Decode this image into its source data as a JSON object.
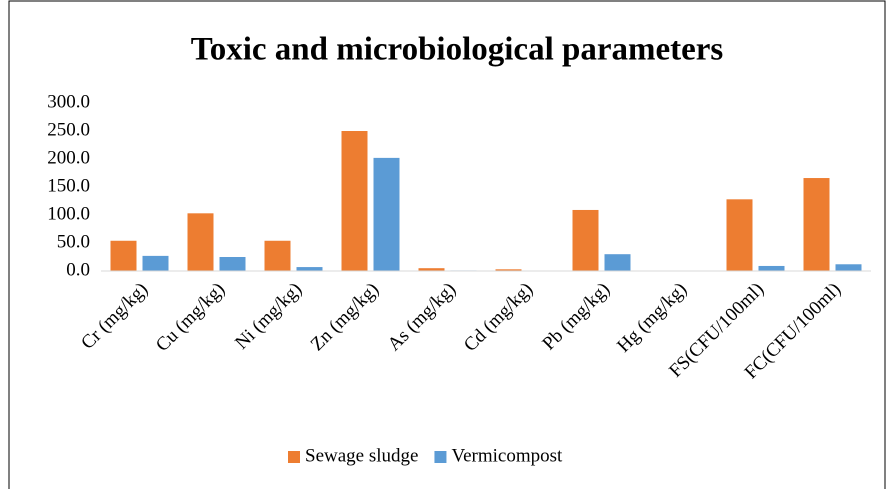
{
  "chart_data": {
    "type": "bar",
    "title": "Toxic and microbiological parameters",
    "categories": [
      "Cr (mg/kg)",
      "Cu (mg/kg)",
      "Ni (mg/kg)",
      "Zn (mg/kg)",
      "As (mg/kg)",
      "Cd (mg/kg)",
      "Pb (mg/kg)",
      "Hg (mg/kg)",
      "FS(CFU/100ml)",
      "FC(CFU/100ml)"
    ],
    "series": [
      {
        "name": "Sewage sludge",
        "color": "#ed7d31",
        "values": [
          54,
          103,
          54,
          250,
          5,
          3,
          109,
          0.5,
          128,
          166
        ]
      },
      {
        "name": "Vermicompost",
        "color": "#5b9bd5",
        "values": [
          27,
          25,
          7,
          202,
          1,
          0.5,
          30,
          0.2,
          9,
          12
        ]
      }
    ],
    "ylim": [
      0,
      300
    ],
    "yticks": [
      {
        "value": 0,
        "label": "0.0"
      },
      {
        "value": 50,
        "label": "50.0"
      },
      {
        "value": 100,
        "label": "100.0"
      },
      {
        "value": 150,
        "label": "150.0"
      },
      {
        "value": 200,
        "label": "200.0"
      },
      {
        "value": 250,
        "label": "250.0"
      },
      {
        "value": 300,
        "label": "300.0"
      }
    ],
    "grid": false,
    "legend": "bottom"
  }
}
